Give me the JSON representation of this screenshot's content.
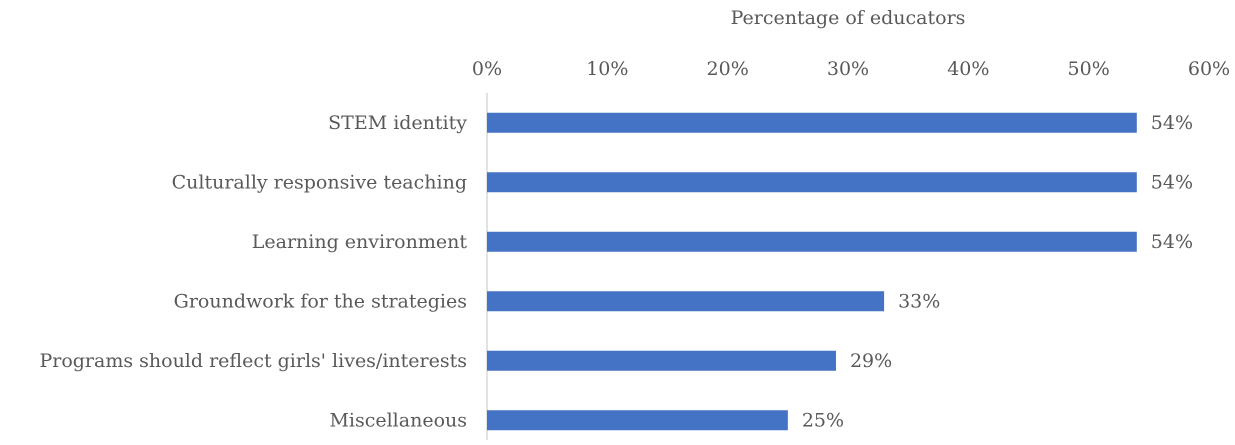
{
  "chart_data": {
    "type": "hbar",
    "x_label": "Percentage of educators",
    "categories": [
      "STEM identity",
      "Culturally responsive teaching",
      "Learning environment",
      "Groundwork for the strategies",
      "Programs should reflect girls' lives/interests",
      "Miscellaneous"
    ],
    "values": [
      54,
      54,
      54,
      33,
      29,
      25
    ],
    "value_labels": [
      "54%",
      "54%",
      "54%",
      "33%",
      "29%",
      "25%"
    ],
    "color": "#4472c4",
    "xlim": [
      0,
      60
    ],
    "xticks": [
      {
        "value": 0,
        "label": "0%"
      },
      {
        "value": 10,
        "label": "10%"
      },
      {
        "value": 20,
        "label": "20%"
      },
      {
        "value": 30,
        "label": "30%"
      },
      {
        "value": 40,
        "label": "40%"
      },
      {
        "value": 50,
        "label": "50%"
      },
      {
        "value": 60,
        "label": "60%"
      }
    ],
    "grid": false
  }
}
